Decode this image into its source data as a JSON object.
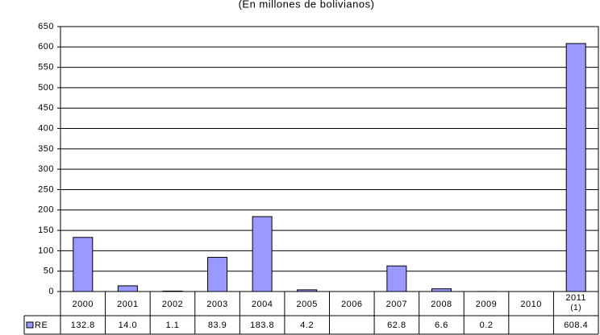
{
  "chart_data": {
    "type": "bar",
    "title": "(En millones de bolivianos)",
    "categories": [
      "2000",
      "2001",
      "2002",
      "2003",
      "2004",
      "2005",
      "2006",
      "2007",
      "2008",
      "2009",
      "2010",
      "2011 (1)"
    ],
    "series": [
      {
        "name": "RE",
        "color": "#9999ff",
        "values": [
          132.8,
          14.0,
          1.1,
          83.9,
          183.8,
          4.2,
          null,
          62.8,
          6.6,
          0.2,
          null,
          608.4
        ],
        "value_labels": [
          "132.8",
          "14.0",
          "1.1",
          "83.9",
          "183.8",
          "4.2",
          null,
          "62.8",
          "6.6",
          "0.2",
          null,
          "608.4"
        ]
      }
    ],
    "ylim": [
      0,
      650
    ],
    "yticks": [
      0,
      50,
      100,
      150,
      200,
      250,
      300,
      350,
      400,
      450,
      500,
      550,
      600,
      650
    ],
    "grid": true
  }
}
